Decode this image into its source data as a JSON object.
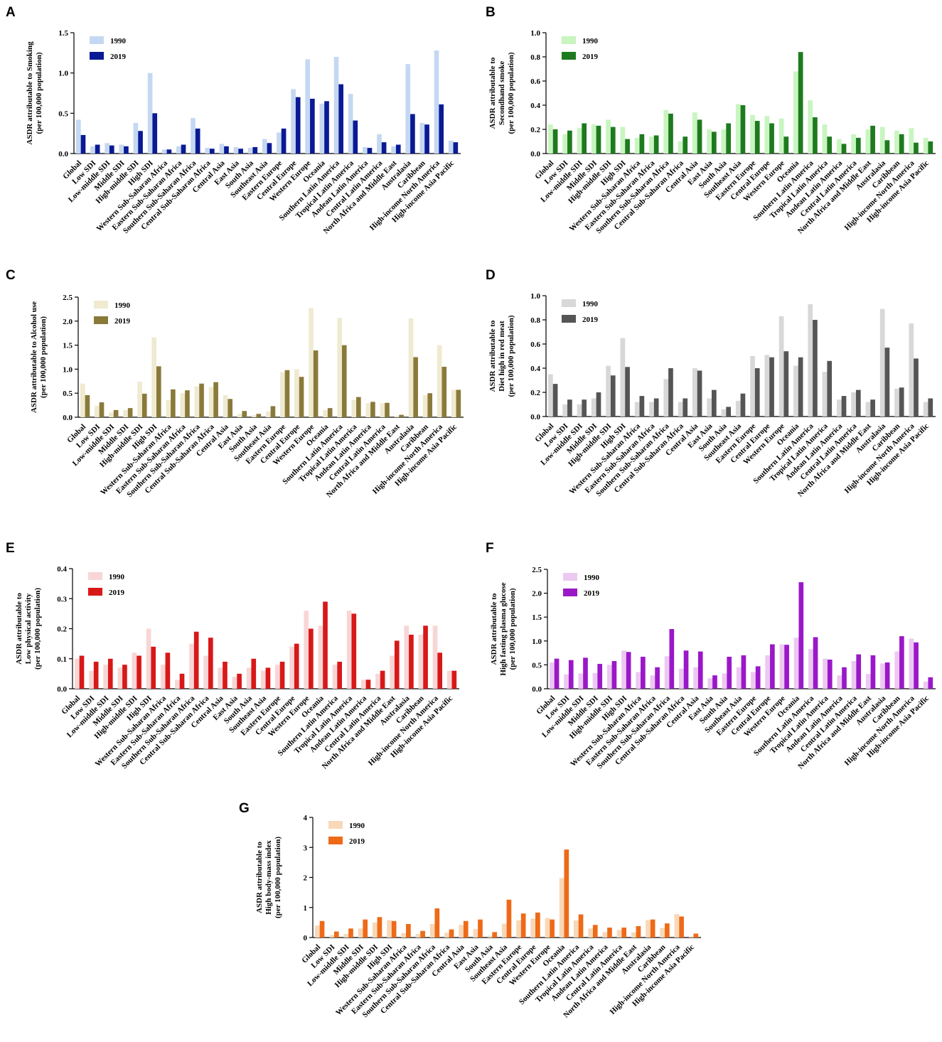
{
  "categories": [
    "Global",
    "Low SDI",
    "Low-middle SDI",
    "Middle SDI",
    "High-middle SDI",
    "High SDI",
    "Western Sub-Saharan Africa",
    "Eastern Sub-Saharan Africa",
    "Southern Sub-Saharan Africa",
    "Central Sub-Saharan Africa",
    "Central Asia",
    "East Asia",
    "South Asia",
    "Southeast Asia",
    "Eastern Europe",
    "Central Europe",
    "Western Europe",
    "Oceania",
    "Southern Latin America",
    "Tropical Latin America",
    "Andean Latin America",
    "Central Latin America",
    "North Africa and Middle East",
    "Australasia",
    "Caribbean",
    "High-income North America",
    "High-income Asia Pacific"
  ],
  "chart_data": [
    {
      "panel": "A",
      "type": "bar",
      "ylabel_lines": [
        "ASDR attributable to Smoking",
        "(per 100,000 population)"
      ],
      "ylim": [
        0,
        1.5
      ],
      "yticks": [
        "0.0",
        "0.5",
        "1.0",
        "1.5"
      ],
      "series": [
        {
          "name": "1990",
          "color": "#c5d8f2",
          "values": [
            0.42,
            0.09,
            0.13,
            0.11,
            0.38,
            1.0,
            0.05,
            0.09,
            0.44,
            0.07,
            0.12,
            0.08,
            0.07,
            0.18,
            0.26,
            0.8,
            1.17,
            0.62,
            1.2,
            0.74,
            0.08,
            0.24,
            0.09,
            1.11,
            0.38,
            1.28,
            0.16
          ]
        },
        {
          "name": "2019",
          "color": "#0a1a94",
          "values": [
            0.23,
            0.11,
            0.1,
            0.09,
            0.28,
            0.5,
            0.05,
            0.11,
            0.31,
            0.06,
            0.09,
            0.06,
            0.08,
            0.13,
            0.31,
            0.7,
            0.68,
            0.65,
            0.86,
            0.41,
            0.07,
            0.14,
            0.11,
            0.49,
            0.36,
            0.61,
            0.14
          ]
        }
      ]
    },
    {
      "panel": "B",
      "type": "bar",
      "ylabel_lines": [
        "ASDR attributable to",
        "Secondhand smoke",
        "(per 100,000 population)"
      ],
      "ylim": [
        0,
        1.0
      ],
      "yticks": [
        "0.0",
        "0.2",
        "0.4",
        "0.6",
        "0.8",
        "1.0"
      ],
      "series": [
        {
          "name": "1990",
          "color": "#c8f5c0",
          "values": [
            0.24,
            0.16,
            0.21,
            0.24,
            0.28,
            0.22,
            0.13,
            0.14,
            0.36,
            0.1,
            0.34,
            0.2,
            0.2,
            0.41,
            0.32,
            0.31,
            0.29,
            0.68,
            0.44,
            0.24,
            0.12,
            0.16,
            0.2,
            0.22,
            0.19,
            0.21,
            0.13
          ]
        },
        {
          "name": "2019",
          "color": "#1e7a1e",
          "values": [
            0.2,
            0.19,
            0.25,
            0.23,
            0.22,
            0.12,
            0.16,
            0.15,
            0.33,
            0.14,
            0.28,
            0.18,
            0.25,
            0.4,
            0.27,
            0.25,
            0.14,
            0.84,
            0.3,
            0.14,
            0.08,
            0.13,
            0.23,
            0.11,
            0.16,
            0.09,
            0.1
          ]
        }
      ]
    },
    {
      "panel": "C",
      "type": "bar",
      "ylabel_lines": [
        "ASDR attributable to Alcohol use",
        "(per 100,000 population)"
      ],
      "ylim": [
        0,
        2.5
      ],
      "yticks": [
        "0.0",
        "0.5",
        "1.0",
        "1.5",
        "2.0",
        "2.5"
      ],
      "series": [
        {
          "name": "1990",
          "color": "#efead0",
          "values": [
            0.7,
            0.24,
            0.1,
            0.15,
            0.74,
            1.66,
            0.36,
            0.5,
            0.64,
            0.63,
            0.46,
            0.07,
            0.04,
            0.12,
            0.94,
            1.0,
            2.27,
            0.15,
            2.07,
            0.36,
            0.29,
            0.29,
            0.03,
            2.06,
            0.46,
            1.5,
            0.57
          ]
        },
        {
          "name": "2019",
          "color": "#8a7a3a",
          "values": [
            0.46,
            0.31,
            0.15,
            0.19,
            0.49,
            1.06,
            0.58,
            0.56,
            0.7,
            0.73,
            0.38,
            0.13,
            0.07,
            0.23,
            0.98,
            0.84,
            1.39,
            0.19,
            1.5,
            0.42,
            0.32,
            0.3,
            0.05,
            1.25,
            0.5,
            1.05,
            0.57
          ]
        }
      ]
    },
    {
      "panel": "D",
      "type": "bar",
      "ylabel_lines": [
        "ASDR attributable to",
        "Diet high in red meat",
        "(per 100,000 population)"
      ],
      "ylim": [
        0,
        1.0
      ],
      "yticks": [
        "0.0",
        "0.2",
        "0.4",
        "0.6",
        "0.8",
        "1.0"
      ],
      "series": [
        {
          "name": "1990",
          "color": "#d8d8d8",
          "values": [
            0.35,
            0.1,
            0.1,
            0.15,
            0.42,
            0.65,
            0.12,
            0.12,
            0.31,
            0.12,
            0.4,
            0.15,
            0.06,
            0.13,
            0.5,
            0.51,
            0.83,
            0.42,
            0.93,
            0.37,
            0.14,
            0.2,
            0.12,
            0.89,
            0.23,
            0.77,
            0.12
          ]
        },
        {
          "name": "2019",
          "color": "#555555",
          "values": [
            0.27,
            0.14,
            0.14,
            0.2,
            0.34,
            0.41,
            0.17,
            0.15,
            0.4,
            0.15,
            0.38,
            0.22,
            0.08,
            0.19,
            0.4,
            0.49,
            0.54,
            0.49,
            0.8,
            0.46,
            0.17,
            0.22,
            0.14,
            0.57,
            0.24,
            0.48,
            0.15
          ]
        }
      ]
    },
    {
      "panel": "E",
      "type": "bar",
      "ylabel_lines": [
        "ASDR attributable to",
        "Low physical activity",
        "(per 100,000 population)"
      ],
      "ylim": [
        0,
        0.4
      ],
      "yticks": [
        "0.0",
        "0.1",
        "0.2",
        "0.3",
        "0.4"
      ],
      "series": [
        {
          "name": "1990",
          "color": "#f8d6d6",
          "values": [
            0.1,
            0.06,
            0.08,
            0.07,
            0.12,
            0.2,
            0.08,
            0.03,
            0.15,
            0.11,
            0.07,
            0.04,
            0.07,
            0.06,
            0.08,
            0.14,
            0.26,
            0.21,
            0.08,
            0.26,
            0.03,
            0.05,
            0.11,
            0.21,
            0.18,
            0.21,
            0.06
          ]
        },
        {
          "name": "2019",
          "color": "#d81818",
          "values": [
            0.11,
            0.09,
            0.1,
            0.08,
            0.11,
            0.14,
            0.12,
            0.05,
            0.19,
            0.17,
            0.09,
            0.05,
            0.1,
            0.07,
            0.09,
            0.15,
            0.2,
            0.29,
            0.09,
            0.25,
            0.03,
            0.06,
            0.16,
            0.18,
            0.21,
            0.12,
            0.06
          ]
        }
      ]
    },
    {
      "panel": "F",
      "type": "bar",
      "ylabel_lines": [
        "ASDR attributable to",
        "High fasting plasma glucose",
        "(per 100,000 population)"
      ],
      "ylim": [
        0,
        2.5
      ],
      "yticks": [
        "0.0",
        "0.5",
        "1.0",
        "1.5",
        "2.0",
        "2.5"
      ],
      "series": [
        {
          "name": "1990",
          "color": "#ecc8f2",
          "values": [
            0.55,
            0.3,
            0.32,
            0.33,
            0.5,
            0.8,
            0.35,
            0.28,
            0.68,
            0.42,
            0.45,
            0.22,
            0.32,
            0.45,
            0.35,
            0.7,
            0.93,
            1.07,
            0.83,
            0.63,
            0.28,
            0.58,
            0.31,
            0.53,
            0.78,
            1.05,
            0.15
          ]
        },
        {
          "name": "2019",
          "color": "#9a18c8",
          "values": [
            0.63,
            0.6,
            0.65,
            0.52,
            0.58,
            0.77,
            0.67,
            0.45,
            1.25,
            0.8,
            0.78,
            0.28,
            0.67,
            0.7,
            0.47,
            0.93,
            0.92,
            2.23,
            1.08,
            0.61,
            0.45,
            0.72,
            0.7,
            0.55,
            1.1,
            0.97,
            0.24
          ]
        }
      ]
    },
    {
      "panel": "G",
      "type": "bar",
      "ylabel_lines": [
        "ASDR attributable to",
        "High body-mass index",
        "(per 100,000 population)"
      ],
      "ylim": [
        0,
        4
      ],
      "yticks": [
        "0",
        "1",
        "2",
        "3",
        "4"
      ],
      "series": [
        {
          "name": "1990",
          "color": "#f8d8b8",
          "values": [
            0.4,
            0.08,
            0.12,
            0.3,
            0.5,
            0.58,
            0.15,
            0.12,
            0.45,
            0.16,
            0.42,
            0.28,
            0.06,
            0.46,
            0.57,
            0.63,
            0.65,
            1.98,
            0.57,
            0.3,
            0.18,
            0.25,
            0.17,
            0.58,
            0.32,
            0.78,
            0.04
          ]
        },
        {
          "name": "2019",
          "color": "#ee6a18",
          "values": [
            0.55,
            0.2,
            0.3,
            0.6,
            0.68,
            0.55,
            0.45,
            0.22,
            0.97,
            0.27,
            0.55,
            0.6,
            0.18,
            1.26,
            0.8,
            0.83,
            0.6,
            2.93,
            0.77,
            0.42,
            0.33,
            0.33,
            0.38,
            0.6,
            0.47,
            0.7,
            0.13
          ]
        }
      ]
    }
  ]
}
